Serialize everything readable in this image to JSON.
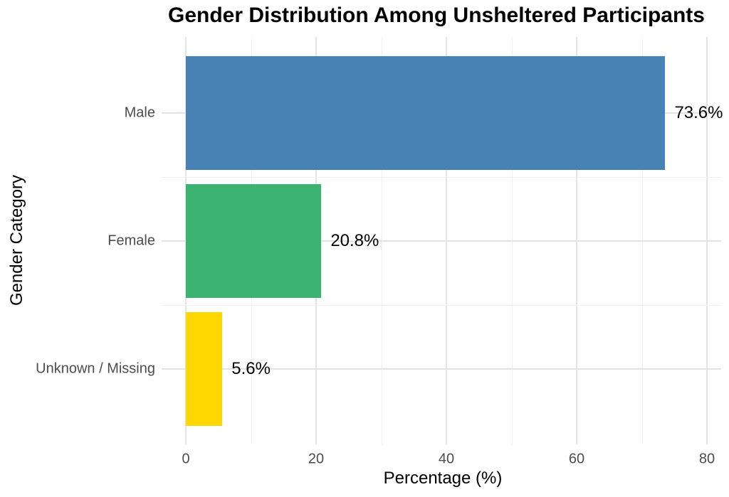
{
  "chart_data": {
    "type": "bar",
    "orientation": "horizontal",
    "title": "Gender Distribution Among Unsheltered Participants",
    "xlabel": "Percentage (%)",
    "ylabel": "Gender Category",
    "categories": [
      "Male",
      "Female",
      "Unknown / Missing"
    ],
    "values": [
      73.6,
      20.8,
      5.6
    ],
    "value_labels": [
      "73.6%",
      "20.8%",
      "5.6%"
    ],
    "bar_colors": [
      "#4682B4",
      "#3CB371",
      "#FFD700"
    ],
    "x_ticks": [
      0,
      20,
      40,
      60,
      80
    ],
    "x_minor_ticks": [
      10,
      30,
      50,
      70
    ],
    "xlim": [
      0,
      82.2
    ],
    "grid": "major-and-minor",
    "legend": false,
    "colors": {
      "background": "#FFFFFF",
      "axis_text": "#4D4D4D",
      "title_text": "#000000",
      "axis_title_text": "#000000",
      "grid_major": "#E4E4E4",
      "grid_minor": "#F0F0F0"
    }
  }
}
